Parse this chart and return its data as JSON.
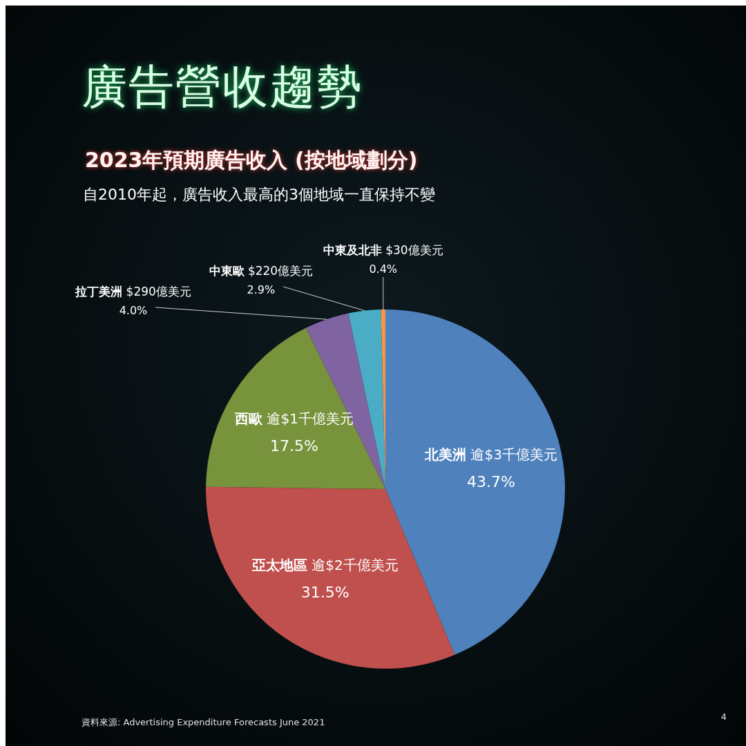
{
  "chart_data": {
    "type": "pie",
    "title": "廣告營收趨勢",
    "subtitle": "2023年預期廣告收入 (按地域劃分)",
    "categories": [
      "北美洲 逾$3千億美元",
      "亞太地區 逾$2千億美元",
      "西歐 逾$1千億美元",
      "拉丁美洲 $290億美元",
      "中東歐 $220億美元",
      "中東及北非 $30億美元"
    ],
    "values": [
      43.7,
      31.5,
      17.5,
      4.0,
      2.9,
      0.4
    ],
    "colors": [
      "#4f81bd",
      "#c0504d",
      "#77933c",
      "#8064a2",
      "#4bacc6",
      "#f79646"
    ],
    "value_labels": [
      "43.7%",
      "31.5%",
      "17.5%",
      "4.0%",
      "2.9%",
      "0.4%"
    ],
    "annotations": [
      "自2010年起，廣告收入最高的3個地域一直保持不變",
      "資料來源: Advertising Expenditure Forecasts June 2021",
      "4"
    ]
  }
}
